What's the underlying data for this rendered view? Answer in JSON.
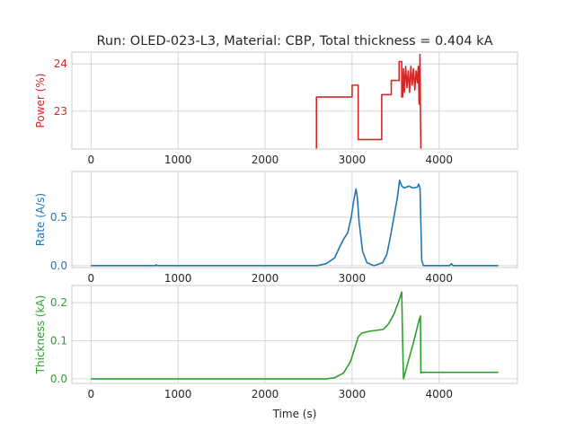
{
  "chart_data": {
    "type": "line",
    "title": "Run: OLED-023-L3, Material: CBP, Total thickness = 0.404 kA",
    "xlabel": "Time (s)",
    "xlim": [
      -220,
      4900
    ],
    "xticks": [
      0,
      1000,
      2000,
      3000,
      4000
    ],
    "grid": true,
    "shared_x": true,
    "panels": [
      {
        "id": "power",
        "ylabel": "Power (%)",
        "color": "#d62728",
        "ylim": [
          22.2,
          24.25
        ],
        "yticks": [
          23,
          24
        ],
        "series": [
          {
            "segments": [
              [
                [
                  2590,
                  22.2
                ],
                [
                  2590,
                  23.3
                ],
                [
                  3000,
                  23.3
                ],
                [
                  3000,
                  23.55
                ],
                [
                  3070,
                  23.55
                ],
                [
                  3070,
                  22.4
                ],
                [
                  3340,
                  22.4
                ],
                [
                  3340,
                  23.35
                ],
                [
                  3450,
                  23.35
                ],
                [
                  3450,
                  23.65
                ],
                [
                  3540,
                  23.65
                ],
                [
                  3540,
                  24.05
                ],
                [
                  3570,
                  24.05
                ],
                [
                  3570,
                  23.3
                ],
                [
                  3580,
                  23.3
                ],
                [
                  3590,
                  23.9
                ],
                [
                  3600,
                  23.4
                ],
                [
                  3615,
                  23.95
                ],
                [
                  3630,
                  23.5
                ],
                [
                  3645,
                  23.85
                ],
                [
                  3660,
                  23.4
                ],
                [
                  3675,
                  23.95
                ],
                [
                  3690,
                  23.55
                ],
                [
                  3705,
                  23.9
                ],
                [
                  3720,
                  23.45
                ],
                [
                  3735,
                  23.85
                ],
                [
                  3750,
                  23.6
                ],
                [
                  3760,
                  23.95
                ],
                [
                  3770,
                  23.15
                ],
                [
                  3780,
                  24.2
                ],
                [
                  3785,
                  22.9
                ],
                [
                  3790,
                  22.2
                ]
              ]
            ]
          }
        ]
      },
      {
        "id": "rate",
        "ylabel": "Rate (A/s)",
        "color": "#1f77b4",
        "ylim": [
          -0.02,
          0.97
        ],
        "yticks": [
          0.0,
          0.5
        ],
        "series": [
          {
            "segments": [
              [
                [
                  0,
                  0.0
                ],
                [
                  740,
                  0.0
                ],
                [
                  750,
                  0.01
                ],
                [
                  760,
                  0.0
                ],
                [
                  2600,
                  0.0
                ],
                [
                  2700,
                  0.02
                ],
                [
                  2800,
                  0.08
                ],
                [
                  2850,
                  0.18
                ],
                [
                  2900,
                  0.27
                ],
                [
                  2950,
                  0.34
                ],
                [
                  2990,
                  0.5
                ],
                [
                  3020,
                  0.68
                ],
                [
                  3045,
                  0.79
                ],
                [
                  3060,
                  0.7
                ],
                [
                  3080,
                  0.45
                ],
                [
                  3120,
                  0.15
                ],
                [
                  3170,
                  0.03
                ],
                [
                  3250,
                  0.0
                ],
                [
                  3350,
                  0.03
                ],
                [
                  3400,
                  0.12
                ],
                [
                  3440,
                  0.3
                ],
                [
                  3480,
                  0.5
                ],
                [
                  3520,
                  0.7
                ],
                [
                  3545,
                  0.88
                ],
                [
                  3570,
                  0.82
                ],
                [
                  3600,
                  0.8
                ],
                [
                  3650,
                  0.82
                ],
                [
                  3700,
                  0.8
                ],
                [
                  3750,
                  0.81
                ],
                [
                  3765,
                  0.84
                ],
                [
                  3780,
                  0.8
                ],
                [
                  3800,
                  0.05
                ],
                [
                  3820,
                  0.0
                ],
                [
                  4120,
                  0.0
                ],
                [
                  4140,
                  0.02
                ],
                [
                  4160,
                  0.0
                ],
                [
                  4680,
                  0.0
                ]
              ]
            ]
          }
        ]
      },
      {
        "id": "thickness",
        "ylabel": "Thickness (kA)",
        "color": "#2ca02c",
        "ylim": [
          -0.012,
          0.245
        ],
        "yticks": [
          0.0,
          0.1,
          0.2
        ],
        "series": [
          {
            "segments": [
              [
                [
                  0,
                  0.0
                ],
                [
                  2700,
                  0.0
                ],
                [
                  2800,
                  0.003
                ],
                [
                  2900,
                  0.015
                ],
                [
                  2980,
                  0.045
                ],
                [
                  3030,
                  0.08
                ],
                [
                  3070,
                  0.11
                ],
                [
                  3110,
                  0.12
                ],
                [
                  3200,
                  0.125
                ],
                [
                  3300,
                  0.128
                ],
                [
                  3360,
                  0.13
                ],
                [
                  3420,
                  0.145
                ],
                [
                  3480,
                  0.17
                ],
                [
                  3530,
                  0.2
                ],
                [
                  3570,
                  0.228
                ],
                [
                  3580,
                  0.1
                ],
                [
                  3590,
                  0.0
                ],
                [
                  3650,
                  0.05
                ],
                [
                  3710,
                  0.1
                ],
                [
                  3770,
                  0.155
                ],
                [
                  3785,
                  0.165
                ],
                [
                  3790,
                  0.015
                ],
                [
                  3800,
                  0.017
                ],
                [
                  4680,
                  0.017
                ]
              ]
            ]
          }
        ]
      }
    ]
  }
}
